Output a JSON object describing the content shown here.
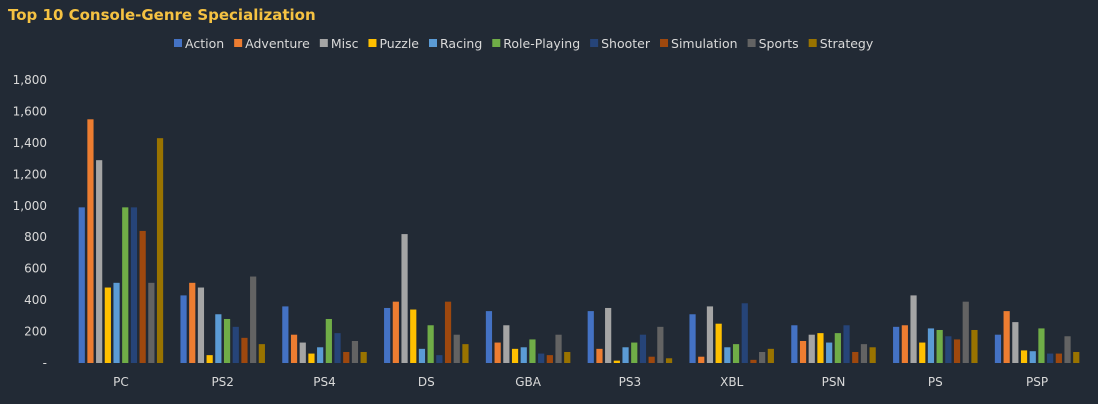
{
  "chart_data": {
    "type": "bar",
    "title": "Top 10 Console-Genre Specialization",
    "xlabel": "",
    "ylabel": "",
    "ylim": [
      0,
      1800
    ],
    "yticks": [
      0,
      200,
      400,
      600,
      800,
      1000,
      1200,
      1400,
      1600,
      1800
    ],
    "ytick_labels": [
      "-",
      "200",
      "400",
      "600",
      "800",
      "1,000",
      "1,200",
      "1,400",
      "1,600",
      "1,800"
    ],
    "grid": false,
    "legend_position": "top",
    "categories": [
      "PC",
      "PS2",
      "PS4",
      "DS",
      "GBA",
      "PS3",
      "XBL",
      "PSN",
      "PS",
      "PSP"
    ],
    "series": [
      {
        "name": "Action",
        "color": "#4472c4",
        "values": [
          990,
          430,
          360,
          350,
          330,
          330,
          310,
          240,
          230,
          180
        ]
      },
      {
        "name": "Adventure",
        "color": "#ed7d31",
        "values": [
          1550,
          510,
          180,
          390,
          130,
          90,
          40,
          140,
          240,
          330
        ]
      },
      {
        "name": "Misc",
        "color": "#a5a5a5",
        "values": [
          1290,
          480,
          130,
          820,
          240,
          350,
          360,
          180,
          430,
          260
        ]
      },
      {
        "name": "Puzzle",
        "color": "#ffc000",
        "values": [
          480,
          50,
          60,
          340,
          90,
          15,
          250,
          190,
          130,
          80
        ]
      },
      {
        "name": "Racing",
        "color": "#5b9bd5",
        "values": [
          510,
          310,
          100,
          90,
          100,
          100,
          100,
          130,
          220,
          75
        ]
      },
      {
        "name": "Role-Playing",
        "color": "#70ad47",
        "values": [
          990,
          280,
          280,
          240,
          150,
          130,
          120,
          190,
          210,
          220
        ]
      },
      {
        "name": "Shooter",
        "color": "#264478",
        "values": [
          990,
          230,
          190,
          50,
          60,
          180,
          380,
          240,
          170,
          60
        ]
      },
      {
        "name": "Simulation",
        "color": "#9e480e",
        "values": [
          840,
          160,
          70,
          390,
          50,
          40,
          20,
          70,
          150,
          60
        ]
      },
      {
        "name": "Sports",
        "color": "#636363",
        "values": [
          510,
          550,
          140,
          180,
          180,
          230,
          70,
          120,
          390,
          170
        ]
      },
      {
        "name": "Strategy",
        "color": "#997300",
        "values": [
          1430,
          120,
          70,
          120,
          70,
          30,
          90,
          100,
          210,
          70
        ]
      }
    ]
  }
}
